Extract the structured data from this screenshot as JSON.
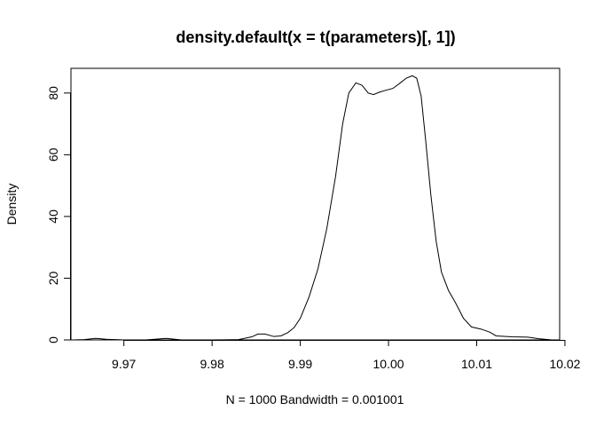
{
  "chart_data": {
    "type": "line",
    "title": "density.default(x = t(parameters)[, 1])",
    "xlabel": "N = 1000   Bandwidth = 0.001001",
    "ylabel": "Density",
    "xlim": [
      9.964,
      10.0194
    ],
    "ylim": [
      0,
      88
    ],
    "x_ticks": [
      9.97,
      9.98,
      9.99,
      10.0,
      10.01,
      10.02
    ],
    "x_tick_labels": [
      "9.97",
      "9.98",
      "9.99",
      "10.00",
      "10.01",
      "10.02"
    ],
    "y_ticks": [
      0,
      20,
      40,
      60,
      80
    ],
    "y_tick_labels": [
      "0",
      "20",
      "40",
      "60",
      "80"
    ],
    "grid": false,
    "legend": "none",
    "series": [
      {
        "color": "#000000",
        "points": [
          [
            9.9643,
            0.0
          ],
          [
            9.9655,
            0.1
          ],
          [
            9.9668,
            0.5
          ],
          [
            9.968,
            0.2
          ],
          [
            9.97,
            0.0
          ],
          [
            9.9725,
            0.0
          ],
          [
            9.9748,
            0.5
          ],
          [
            9.9765,
            0.0
          ],
          [
            9.98,
            0.0
          ],
          [
            9.983,
            0.1
          ],
          [
            9.9845,
            1.0
          ],
          [
            9.9852,
            1.9
          ],
          [
            9.986,
            1.9
          ],
          [
            9.987,
            1.1
          ],
          [
            9.9878,
            1.3
          ],
          [
            9.9886,
            2.4
          ],
          [
            9.9893,
            4.0
          ],
          [
            9.99,
            7.0
          ],
          [
            9.991,
            14.0
          ],
          [
            9.992,
            23.0
          ],
          [
            9.993,
            36.0
          ],
          [
            9.994,
            53.0
          ],
          [
            9.9948,
            70.0
          ],
          [
            9.9955,
            80.0
          ],
          [
            9.9963,
            83.3
          ],
          [
            9.997,
            82.5
          ],
          [
            9.9977,
            80.0
          ],
          [
            9.9983,
            79.5
          ],
          [
            9.999,
            80.3
          ],
          [
            9.9997,
            80.9
          ],
          [
            10.0005,
            81.5
          ],
          [
            10.0013,
            83.2
          ],
          [
            10.002,
            84.8
          ],
          [
            10.0027,
            85.6
          ],
          [
            10.0032,
            84.8
          ],
          [
            10.0037,
            79.0
          ],
          [
            10.0042,
            65.0
          ],
          [
            10.0048,
            47.0
          ],
          [
            10.0054,
            32.0
          ],
          [
            10.006,
            22.0
          ],
          [
            10.0068,
            16.0
          ],
          [
            10.0076,
            12.0
          ],
          [
            10.0085,
            7.0
          ],
          [
            10.0094,
            4.2
          ],
          [
            10.0105,
            3.5
          ],
          [
            10.0115,
            2.5
          ],
          [
            10.0122,
            1.3
          ],
          [
            10.014,
            1.0
          ],
          [
            10.0158,
            0.9
          ],
          [
            10.017,
            0.4
          ],
          [
            10.0185,
            0.0
          ],
          [
            10.0194,
            0.0
          ]
        ]
      }
    ]
  }
}
